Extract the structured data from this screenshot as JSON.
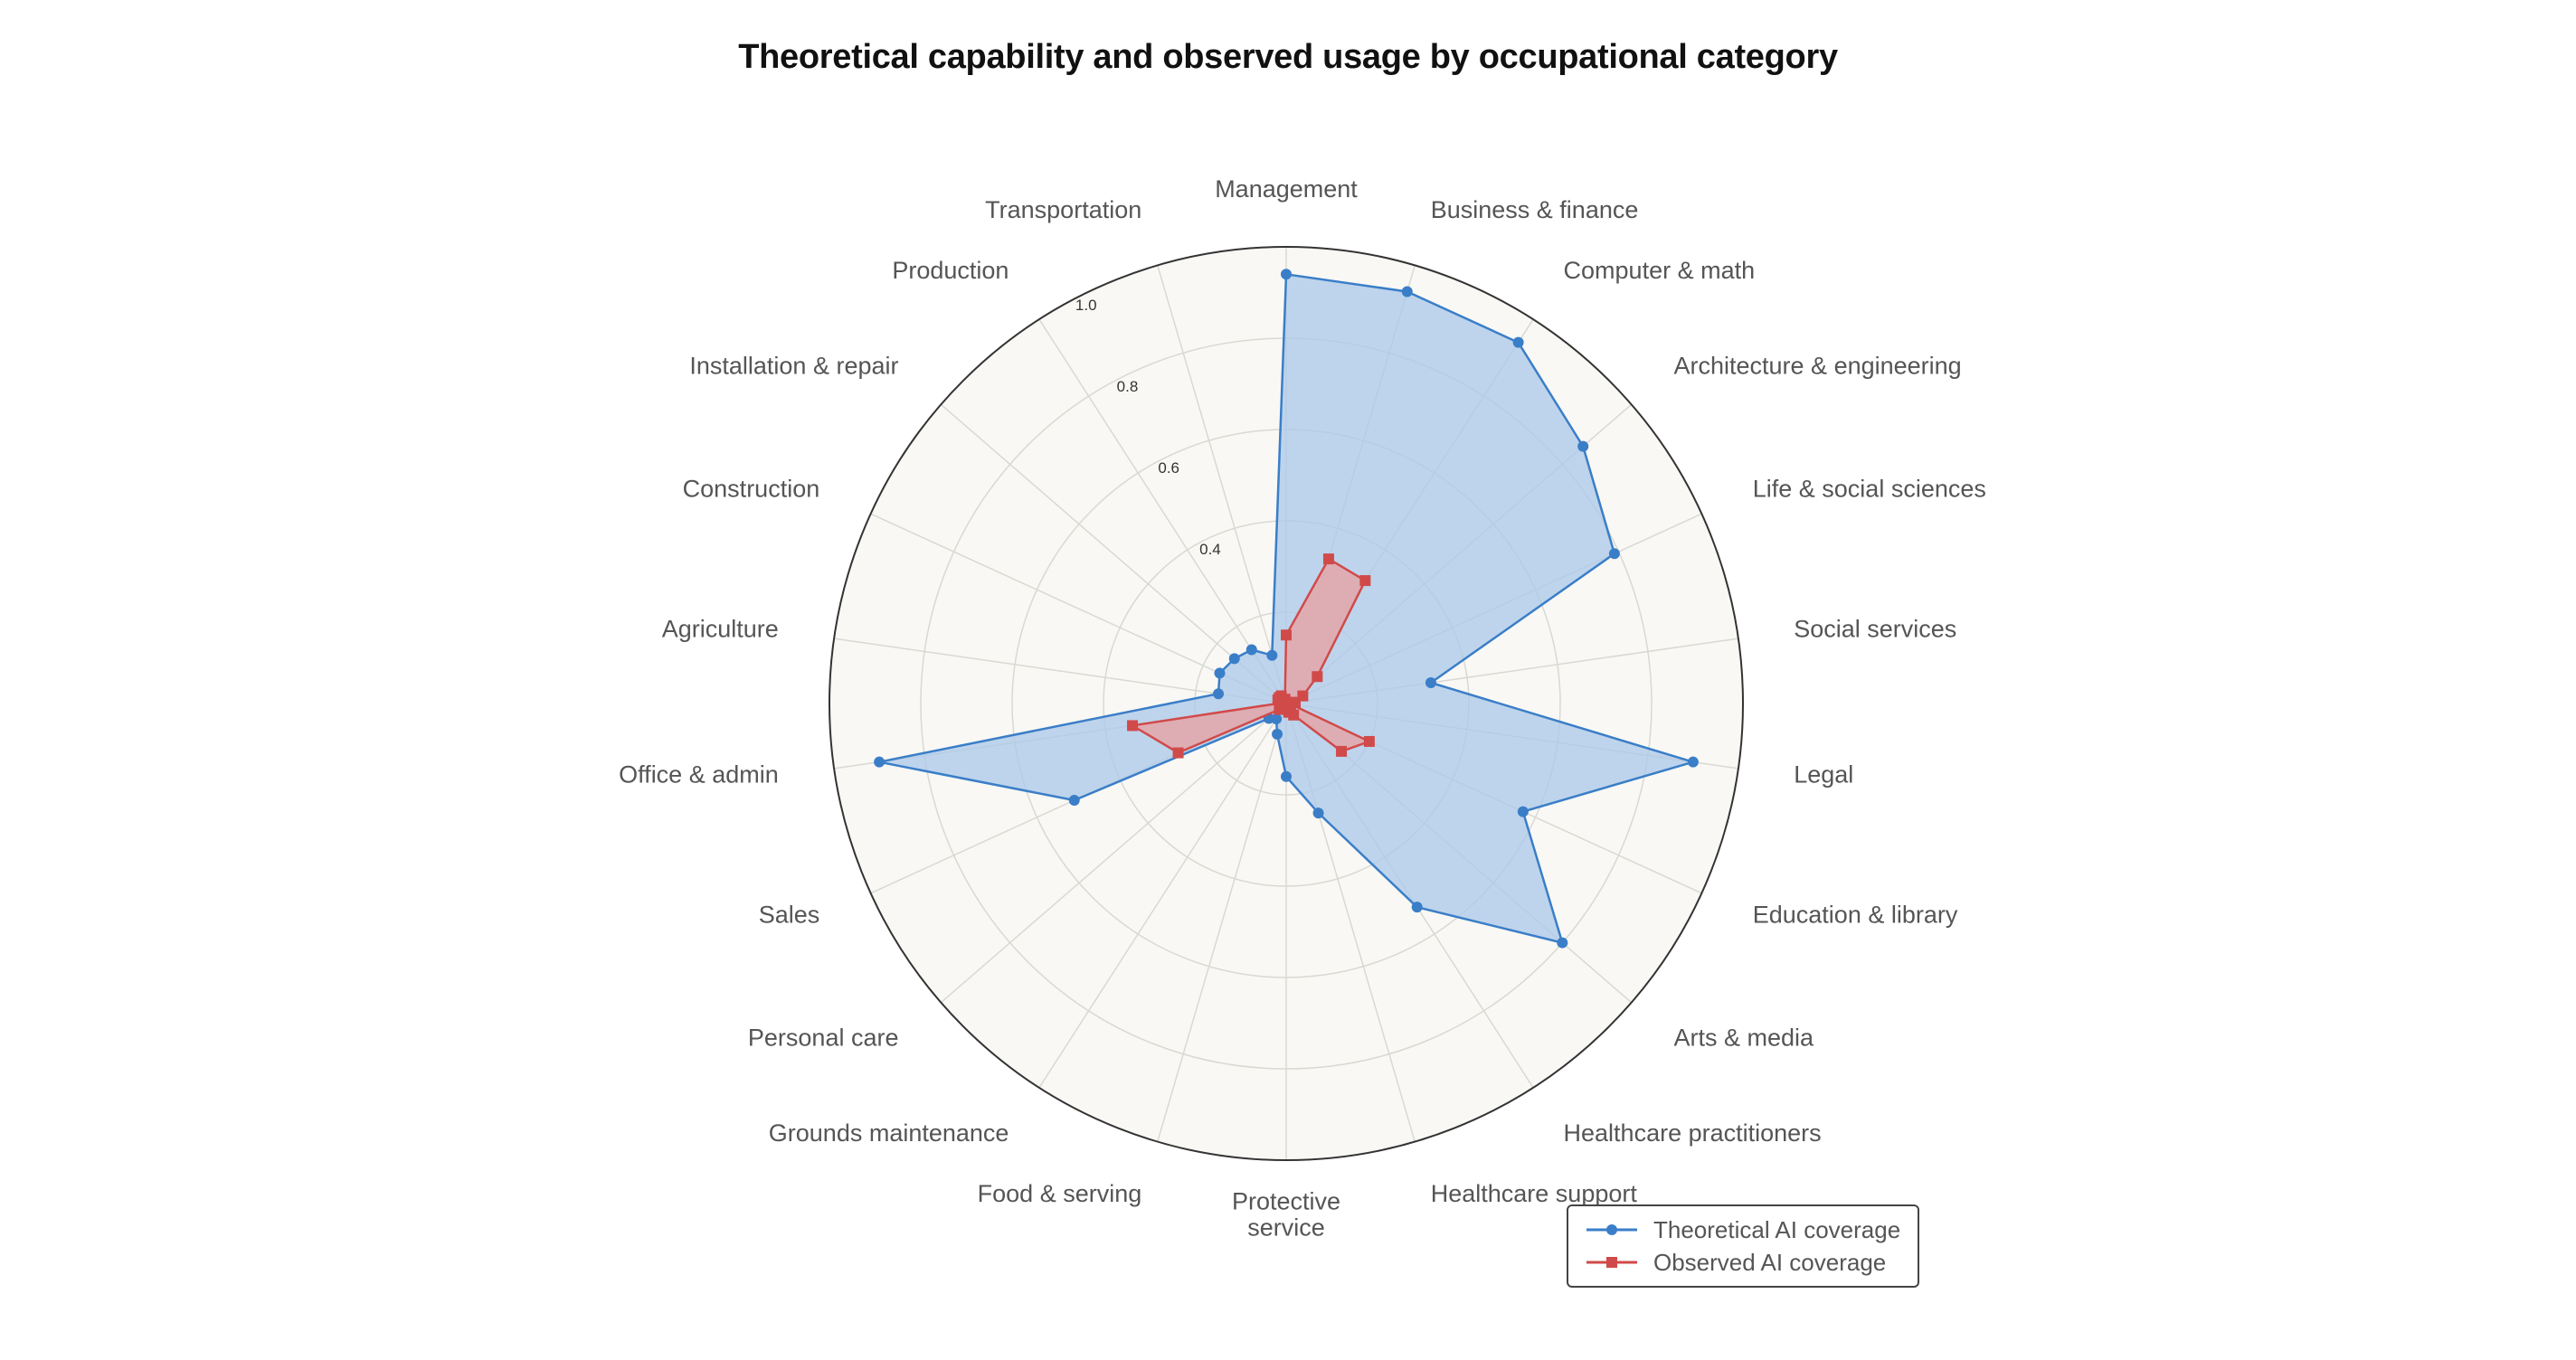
{
  "chart_data": {
    "type": "radar",
    "title": "Theoretical capability and observed usage by occupational category",
    "categories": [
      "Management",
      "Business & finance",
      "Computer & math",
      "Architecture & engineering",
      "Life & social sciences",
      "Social services",
      "Legal",
      "Education & library",
      "Arts & media",
      "Healthcare practitioners",
      "Healthcare support",
      "Protective service",
      "Food & serving",
      "Grounds maintenance",
      "Personal care",
      "Sales",
      "Office & admin",
      "Agriculture",
      "Construction",
      "Installation & repair",
      "Production",
      "Transportation"
    ],
    "category_labels": [
      [
        "Management"
      ],
      [
        "Business & finance"
      ],
      [
        "Computer & math"
      ],
      [
        "Architecture & engineering"
      ],
      [
        "Life & social sciences"
      ],
      [
        "Social services"
      ],
      [
        "Legal"
      ],
      [
        "Education & library"
      ],
      [
        "Arts & media"
      ],
      [
        "Healthcare practitioners"
      ],
      [
        "Healthcare support"
      ],
      [
        "Protective",
        "service"
      ],
      [
        "Food & serving"
      ],
      [
        "Grounds maintenance"
      ],
      [
        "Personal care"
      ],
      [
        "Sales"
      ],
      [
        "Office & admin"
      ],
      [
        "Agriculture"
      ],
      [
        "Construction"
      ],
      [
        "Installation & repair"
      ],
      [
        "Production"
      ],
      [
        "Transportation"
      ]
    ],
    "series": [
      {
        "name": "Theoretical AI coverage",
        "color": "#3a7ec8",
        "fill": "#a9c8ea",
        "marker": "circle",
        "values": [
          0.94,
          0.94,
          0.94,
          0.86,
          0.79,
          0.32,
          0.9,
          0.57,
          0.8,
          0.53,
          0.25,
          0.16,
          0.07,
          0.04,
          0.05,
          0.51,
          0.9,
          0.15,
          0.16,
          0.15,
          0.14,
          0.11
        ]
      },
      {
        "name": "Observed AI coverage",
        "color": "#d14a4a",
        "fill": "#e8a0a0",
        "marker": "square",
        "values": [
          0.15,
          0.33,
          0.32,
          0.09,
          0.04,
          0.02,
          0.01,
          0.2,
          0.16,
          0.03,
          0.02,
          0.01,
          0.01,
          0.01,
          0.02,
          0.26,
          0.34,
          0.01,
          0.02,
          0.02,
          0.02,
          0.01
        ]
      }
    ],
    "rlim": [
      0,
      1.0
    ],
    "r_ticks": [
      "0.4",
      "0.6",
      "0.8",
      "1.0"
    ],
    "r_tick_values": [
      0.4,
      0.6,
      0.8,
      1.0
    ],
    "grid": true,
    "legend_position": "bottom-right",
    "plot_background": "#f9f8f4",
    "grid_color": "#d9d9d4",
    "outline_color": "#333333"
  }
}
